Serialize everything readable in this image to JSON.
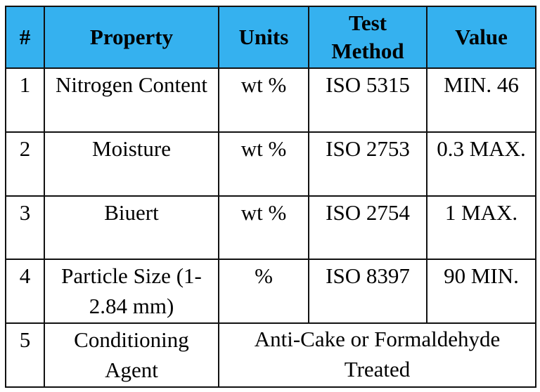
{
  "table": {
    "headers": [
      "#",
      "Property",
      "Units",
      "Test Method",
      "Value"
    ],
    "rows": [
      {
        "num": "1",
        "property": "Nitrogen Content",
        "units": "wt %",
        "method": "ISO 5315",
        "value": "MIN. 46"
      },
      {
        "num": "2",
        "property": "Moisture",
        "units": "wt %",
        "method": "ISO 2753",
        "value": "0.3 MAX."
      },
      {
        "num": "3",
        "property": "Biuert",
        "units": "wt %",
        "method": "ISO 2754",
        "value": "1 MAX."
      },
      {
        "num": "4",
        "property": "Particle Size (1-2.84 mm)",
        "units": "%",
        "method": "ISO 8397",
        "value": "90 MIN."
      },
      {
        "num": "5",
        "property": "Conditioning Agent",
        "merged": "Anti-Cake or Formaldehyde Treated"
      }
    ]
  },
  "colors": {
    "header_background": "#35b1ef",
    "border": "#111111"
  }
}
